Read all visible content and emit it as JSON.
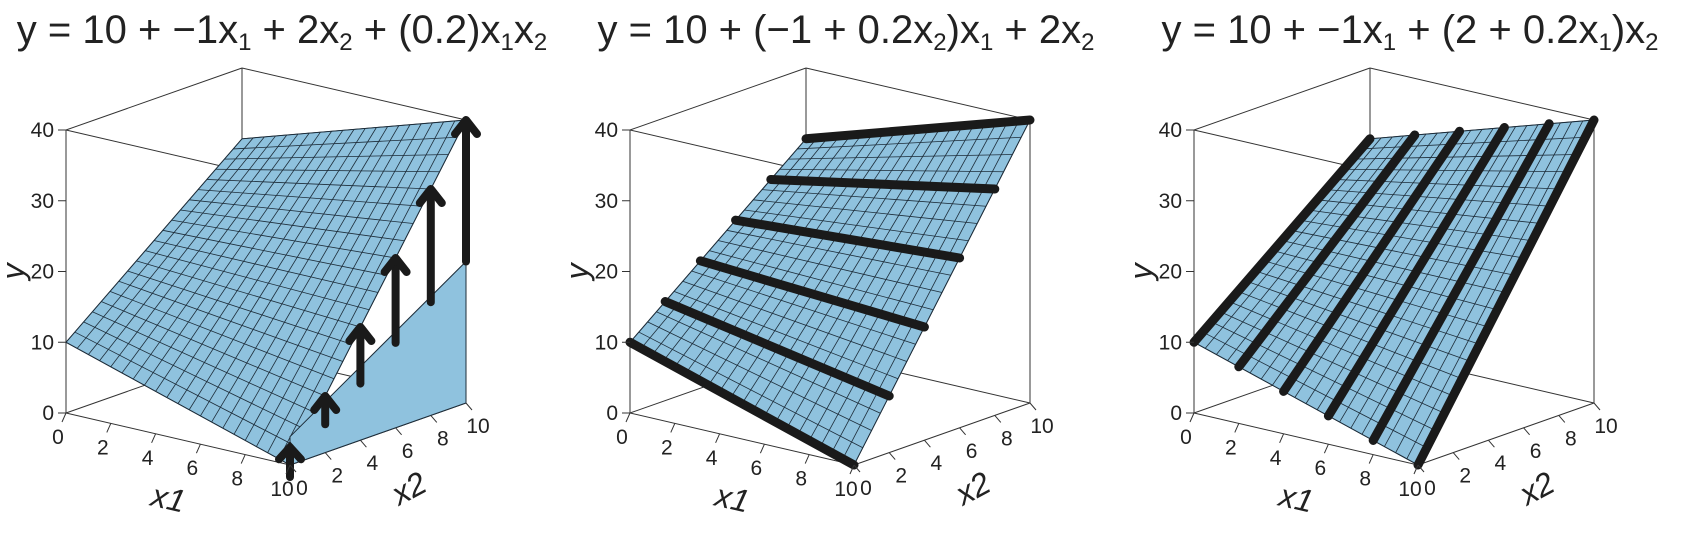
{
  "chart_data": [
    {
      "type": "surface",
      "title_parts": [
        "y = 10 + −1x",
        "1",
        " + 2x",
        "2",
        " + (0.2)x",
        "1",
        "x",
        "2"
      ],
      "equation": {
        "intercept": 10,
        "b1": -1,
        "b2": 2,
        "b12": 0.2
      },
      "xlabel": "x1",
      "ylabel": "x2",
      "zlabel": "y",
      "xlim": [
        0,
        10
      ],
      "ylim": [
        0,
        10
      ],
      "zlim": [
        0,
        40
      ],
      "x_ticks": [
        "0",
        "2",
        "4",
        "6",
        "8",
        "10"
      ],
      "y_ticks": [
        "0",
        "2",
        "4",
        "6",
        "8",
        "10"
      ],
      "z_ticks": [
        "0",
        "10",
        "20",
        "30",
        "40"
      ],
      "grid_steps": 20,
      "surface_color": "#8fc2de",
      "overlay": "arrows",
      "arrows": [
        {
          "x1": 10,
          "x2": 0,
          "from": 0,
          "to": 0
        },
        {
          "x1": 10,
          "x2": 2,
          "from": 4,
          "to": 8
        },
        {
          "x1": 10,
          "x2": 4,
          "from": 8,
          "to": 16
        },
        {
          "x1": 10,
          "x2": 6,
          "from": 12,
          "to": 24
        },
        {
          "x1": 10,
          "x2": 8,
          "from": 16,
          "to": 32
        },
        {
          "x1": 10,
          "x2": 10,
          "from": 20,
          "to": 40
        }
      ]
    },
    {
      "type": "surface",
      "title_parts": [
        "y = 10 + (−1 + 0.2x",
        "2",
        ")x",
        "1",
        " + 2x",
        "2",
        "",
        ""
      ],
      "equation": {
        "intercept": 10,
        "b1": -1,
        "b2": 2,
        "b12": 0.2
      },
      "xlabel": "x1",
      "ylabel": "x2",
      "zlabel": "y",
      "xlim": [
        0,
        10
      ],
      "ylim": [
        0,
        10
      ],
      "zlim": [
        0,
        40
      ],
      "x_ticks": [
        "0",
        "2",
        "4",
        "6",
        "8",
        "10"
      ],
      "y_ticks": [
        "0",
        "2",
        "4",
        "6",
        "8",
        "10"
      ],
      "z_ticks": [
        "0",
        "10",
        "20",
        "30",
        "40"
      ],
      "grid_steps": 20,
      "surface_color": "#8fc2de",
      "overlay": "lines_x1",
      "line_values": [
        0,
        2,
        4,
        6,
        8,
        10
      ]
    },
    {
      "type": "surface",
      "title_parts": [
        "y = 10 + −1x",
        "1",
        " + (2 + 0.2x",
        "1",
        ")x",
        "2",
        "",
        ""
      ],
      "equation": {
        "intercept": 10,
        "b1": -1,
        "b2": 2,
        "b12": 0.2
      },
      "xlabel": "x1",
      "ylabel": "x2",
      "zlabel": "y",
      "xlim": [
        0,
        10
      ],
      "ylim": [
        0,
        10
      ],
      "zlim": [
        0,
        40
      ],
      "x_ticks": [
        "0",
        "2",
        "4",
        "6",
        "8",
        "10"
      ],
      "y_ticks": [
        "0",
        "2",
        "4",
        "6",
        "8",
        "10"
      ],
      "z_ticks": [
        "0",
        "10",
        "20",
        "30",
        "40"
      ],
      "grid_steps": 20,
      "surface_color": "#8fc2de",
      "overlay": "lines_x2",
      "line_values": [
        0,
        2,
        4,
        6,
        8,
        10
      ]
    }
  ]
}
